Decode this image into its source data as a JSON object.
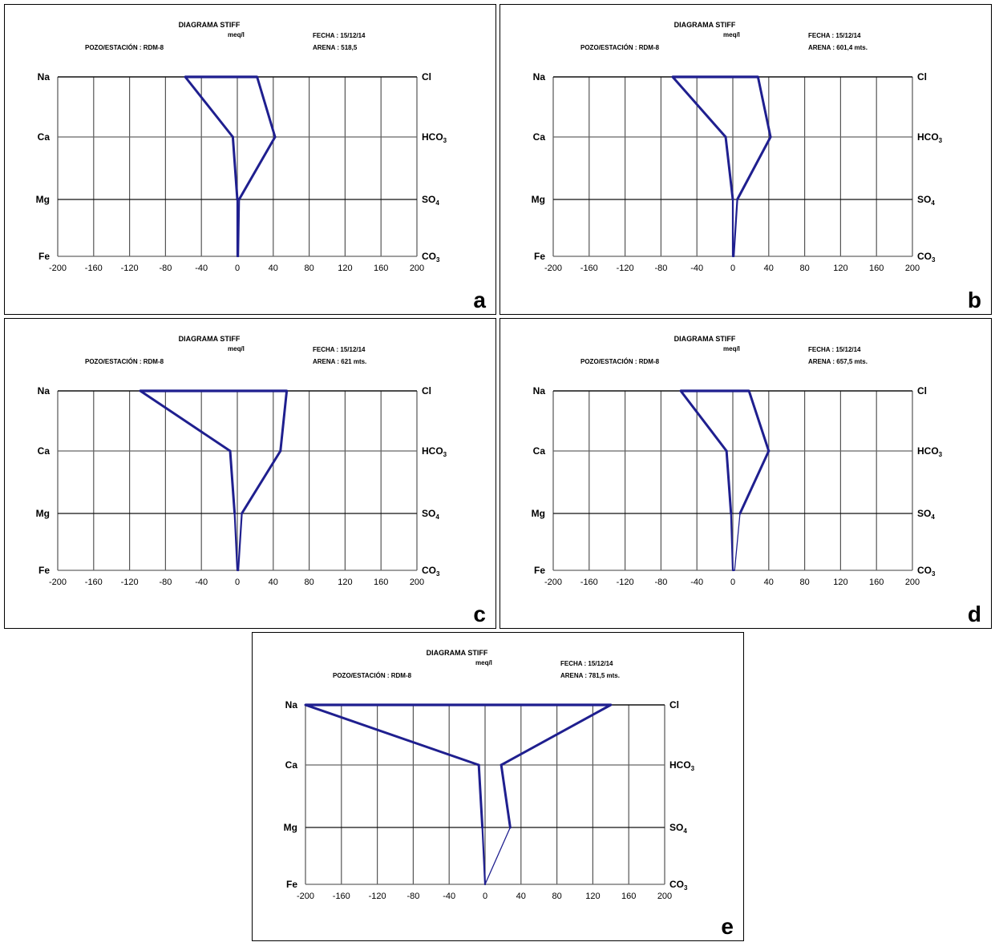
{
  "charts": [
    {
      "panel_letter": "a",
      "title": "DIAGRAMA STIFF",
      "units": "meq/l",
      "station": "POZO/ESTACIÓN : RDM-8",
      "date": "FECHA : 15/12/14",
      "depth": "ARENA : 518,5",
      "cations": [
        "Na",
        "Ca",
        "Mg",
        "Fe"
      ],
      "anions": [
        "Cl",
        "HCO3",
        "SO4",
        "CO3"
      ],
      "xticks": [
        "-200",
        "-160",
        "-120",
        "-80",
        "-40",
        "0",
        "40",
        "80",
        "120",
        "160",
        "200"
      ]
    },
    {
      "panel_letter": "b",
      "title": "DIAGRAMA STIFF",
      "units": "meq/l",
      "station": "POZO/ESTACIÓN : RDM-8",
      "date": "FECHA : 15/12/14",
      "depth": "ARENA : 601,4 mts.",
      "cations": [
        "Na",
        "Ca",
        "Mg",
        "Fe"
      ],
      "anions": [
        "Cl",
        "HCO3",
        "SO4",
        "CO3"
      ],
      "xticks": [
        "-200",
        "-160",
        "-120",
        "-80",
        "-40",
        "0",
        "40",
        "80",
        "120",
        "160",
        "200"
      ]
    },
    {
      "panel_letter": "c",
      "title": "DIAGRAMA STIFF",
      "units": "meq/l",
      "station": "POZO/ESTACIÓN : RDM-8",
      "date": "FECHA : 15/12/14",
      "depth": "ARENA : 621 mts.",
      "cations": [
        "Na",
        "Ca",
        "Mg",
        "Fe"
      ],
      "anions": [
        "Cl",
        "HCO3",
        "SO4",
        "CO3"
      ],
      "xticks": [
        "-200",
        "-160",
        "-120",
        "-80",
        "-40",
        "0",
        "40",
        "80",
        "120",
        "160",
        "200"
      ]
    },
    {
      "panel_letter": "d",
      "title": "DIAGRAMA STIFF",
      "units": "meq/l",
      "station": "POZO/ESTACIÓN : RDM-8",
      "date": "FECHA : 15/12/14",
      "depth": "ARENA : 657,5 mts.",
      "cations": [
        "Na",
        "Ca",
        "Mg",
        "Fe"
      ],
      "anions": [
        "Cl",
        "HCO3",
        "SO4",
        "CO3"
      ],
      "xticks": [
        "-200",
        "-160",
        "-120",
        "-80",
        "-40",
        "0",
        "40",
        "80",
        "120",
        "160",
        "200"
      ]
    },
    {
      "panel_letter": "e",
      "title": "DIAGRAMA STIFF",
      "units": "meq/l",
      "station": "POZO/ESTACIÓN : RDM-8",
      "date": "FECHA : 15/12/14",
      "depth": "ARENA : 781,5 mts.",
      "cations": [
        "Na",
        "Ca",
        "Mg",
        "Fe"
      ],
      "anions": [
        "Cl",
        "HCO3",
        "SO4",
        "CO3"
      ],
      "xticks": [
        "-200",
        "-160",
        "-120",
        "-80",
        "-40",
        "0",
        "40",
        "80",
        "120",
        "160",
        "200"
      ]
    }
  ],
  "chart_data": [
    {
      "type": "line",
      "title": "DIAGRAMA STIFF",
      "xlim": [
        -200,
        200
      ],
      "grid": true,
      "color": "#1f1f8f",
      "series": [
        {
          "name": "cations",
          "labels": [
            "Na",
            "Ca",
            "Mg",
            "Fe"
          ],
          "values": [
            -58,
            -5,
            0,
            0
          ]
        },
        {
          "name": "anions",
          "labels": [
            "Cl",
            "HCO3",
            "SO4",
            "CO3"
          ],
          "values": [
            22,
            42,
            2,
            1
          ]
        }
      ]
    },
    {
      "type": "line",
      "title": "DIAGRAMA STIFF",
      "xlim": [
        -200,
        200
      ],
      "grid": true,
      "color": "#1f1f8f",
      "series": [
        {
          "name": "cations",
          "labels": [
            "Na",
            "Ca",
            "Mg",
            "Fe"
          ],
          "values": [
            -67,
            -8,
            0,
            0
          ]
        },
        {
          "name": "anions",
          "labels": [
            "Cl",
            "HCO3",
            "SO4",
            "CO3"
          ],
          "values": [
            28,
            42,
            5,
            1
          ]
        }
      ]
    },
    {
      "type": "line",
      "title": "DIAGRAMA STIFF",
      "xlim": [
        -200,
        200
      ],
      "grid": true,
      "color": "#1f1f8f",
      "series": [
        {
          "name": "cations",
          "labels": [
            "Na",
            "Ca",
            "Mg",
            "Fe"
          ],
          "values": [
            -108,
            -8,
            -3,
            0
          ]
        },
        {
          "name": "anions",
          "labels": [
            "Cl",
            "HCO3",
            "SO4",
            "CO3"
          ],
          "values": [
            55,
            48,
            5,
            1
          ]
        }
      ]
    },
    {
      "type": "line",
      "title": "DIAGRAMA STIFF",
      "xlim": [
        -200,
        200
      ],
      "grid": true,
      "color": "#1f1f8f",
      "series": [
        {
          "name": "cations",
          "labels": [
            "Na",
            "Ca",
            "Mg",
            "Fe"
          ],
          "values": [
            -58,
            -7,
            -2,
            0
          ]
        },
        {
          "name": "anions",
          "labels": [
            "Cl",
            "HCO3",
            "SO4",
            "CO3"
          ],
          "values": [
            18,
            40,
            8,
            2
          ]
        }
      ]
    },
    {
      "type": "line",
      "title": "DIAGRAMA STIFF",
      "xlim": [
        -200,
        200
      ],
      "grid": true,
      "color": "#1f1f8f",
      "series": [
        {
          "name": "cations",
          "labels": [
            "Na",
            "Ca",
            "Mg",
            "Fe"
          ],
          "values": [
            -200,
            -7,
            -3,
            0
          ]
        },
        {
          "name": "anions",
          "labels": [
            "Cl",
            "HCO3",
            "SO4",
            "CO3"
          ],
          "values": [
            140,
            18,
            28,
            0
          ]
        }
      ]
    }
  ]
}
